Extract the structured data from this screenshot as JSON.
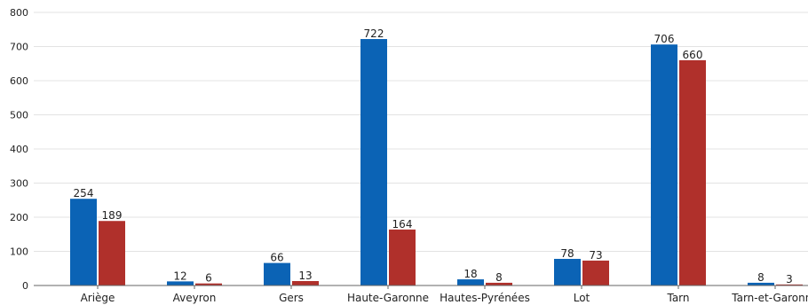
{
  "chart_data": {
    "type": "bar",
    "title": "",
    "xlabel": "",
    "ylabel": "",
    "ylim": [
      0,
      800
    ],
    "yticks": [
      0,
      100,
      200,
      300,
      400,
      500,
      600,
      700,
      800
    ],
    "grid": true,
    "legend": "none",
    "categories": [
      "Ariège",
      "Aveyron",
      "Gers",
      "Haute-Garonne",
      "Hautes-Pyrénées",
      "Lot",
      "Tarn",
      "Tarn-et-Garonne"
    ],
    "series": [
      {
        "values": [
          254,
          12,
          66,
          722,
          18,
          78,
          706,
          8
        ],
        "color": "#0b63b5"
      },
      {
        "values": [
          189,
          6,
          13,
          164,
          8,
          73,
          660,
          3
        ],
        "color": "#b0302b"
      }
    ]
  }
}
